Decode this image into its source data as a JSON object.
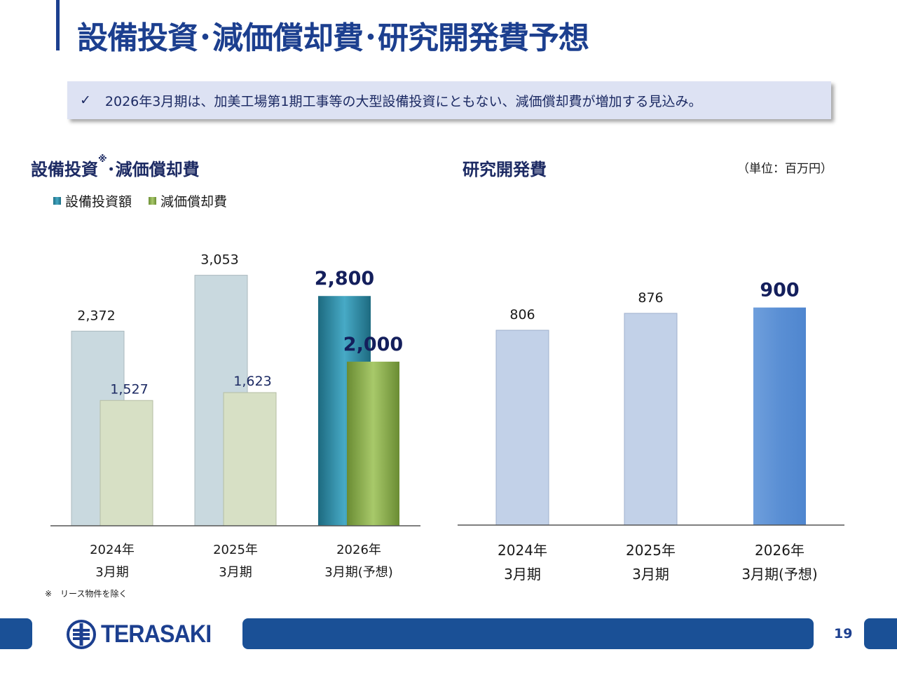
{
  "slide": {
    "title": "設備投資･減価償却費･研究開発費予想",
    "banner": {
      "check": "✓",
      "text": "2026年3月期は、加美工場第1期工事等の大型設備投資にともない、減価償却費が増加する見込み。"
    },
    "left_title": "設備投資",
    "left_title_mark": "※",
    "left_title_rest": "･減価償却費",
    "right_title": "研究開発費",
    "unit": "（単位：百万円）",
    "footnote": "※　リース物件を除く",
    "logo_text": "TERASAKI",
    "page_number": "19"
  },
  "colors": {
    "capex": "#c9d9df",
    "depreciation": "#d7e0c5",
    "capex_forecast": "#2c8fa9",
    "depreciation_forecast": "#8fb24f",
    "rnd": "#c2d1e8",
    "rnd_forecast": "#5b93d6",
    "label_dark": "#141f5c",
    "brand": "#1c3f8f"
  },
  "chart_data": [
    {
      "type": "bar",
      "title": "設備投資※･減価償却費",
      "categories": [
        [
          "2024年",
          "3月期"
        ],
        [
          "2025年",
          "3月期"
        ],
        [
          "2026年",
          "3月期(予想)"
        ]
      ],
      "series": [
        {
          "name": "設備投資額",
          "values": [
            2372,
            3053,
            2800
          ],
          "labels": [
            "2,372",
            "3,053",
            "2,800"
          ]
        },
        {
          "name": "減価償却費",
          "values": [
            1527,
            1623,
            2000
          ],
          "labels": [
            "1,527",
            "1,623",
            "2,000"
          ]
        }
      ],
      "highlight_last": true,
      "ylim": [
        0,
        3400
      ],
      "legend": "top-left"
    },
    {
      "type": "bar",
      "title": "研究開発費",
      "categories": [
        [
          "2024年",
          "3月期"
        ],
        [
          "2025年",
          "3月期"
        ],
        [
          "2026年",
          "3月期(予想)"
        ]
      ],
      "series": [
        {
          "name": "研究開発費",
          "values": [
            806,
            876,
            900
          ],
          "labels": [
            "806",
            "876",
            "900"
          ]
        }
      ],
      "highlight_last": true,
      "ylim": [
        0,
        1160
      ]
    }
  ]
}
